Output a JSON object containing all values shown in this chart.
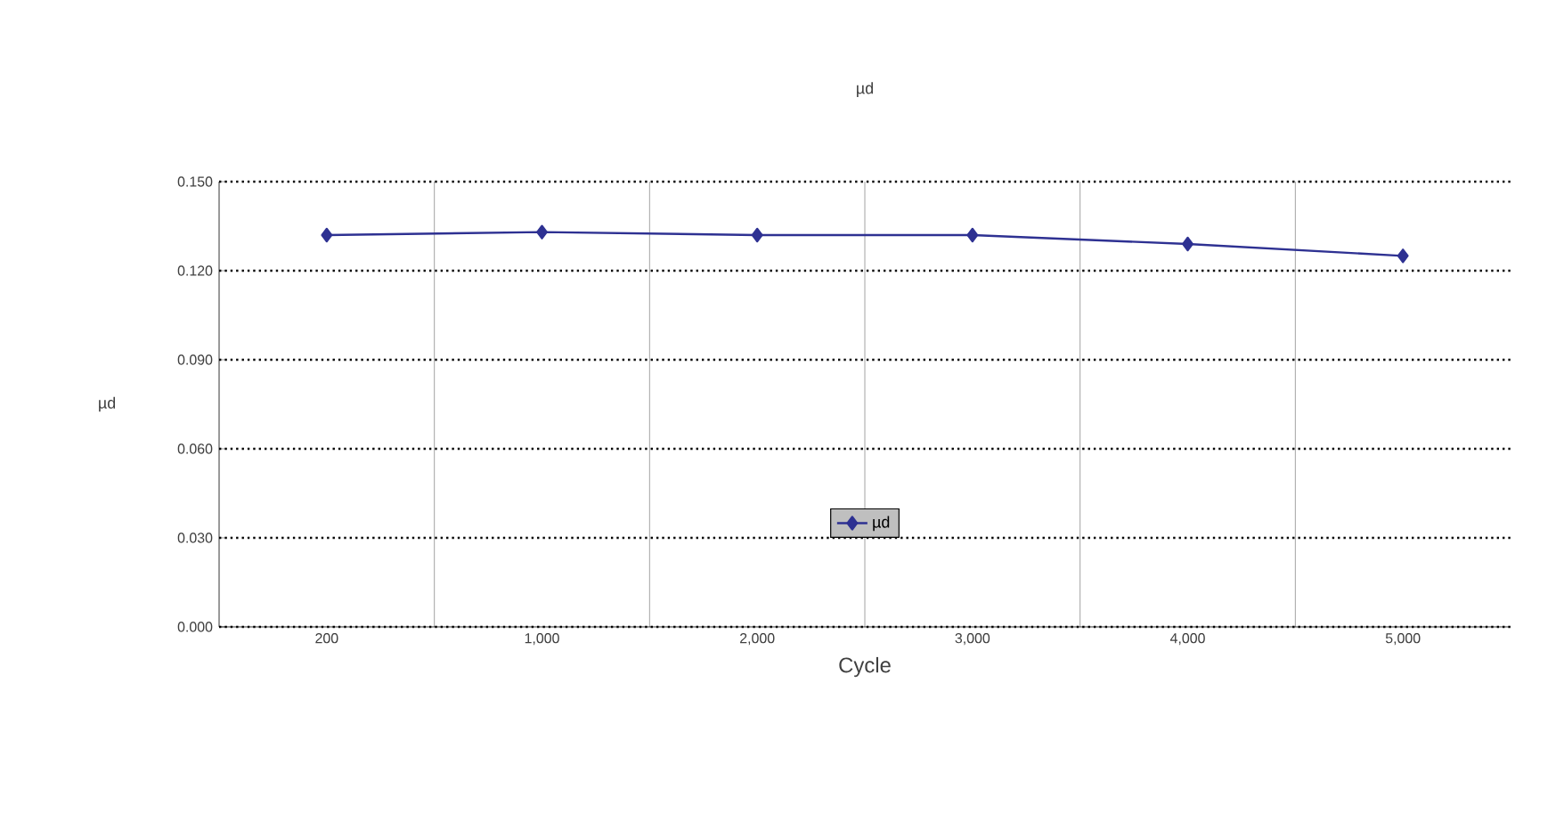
{
  "chart_data": {
    "type": "line",
    "title": "µd",
    "xlabel": "Cycle",
    "ylabel": "µd",
    "categories": [
      "200",
      "1,000",
      "2,000",
      "3,000",
      "4,000",
      "5,000"
    ],
    "series": [
      {
        "name": "µd",
        "color": "#2e3192",
        "values": [
          0.132,
          0.133,
          0.132,
          0.132,
          0.129,
          0.125
        ]
      }
    ],
    "ylim": [
      0,
      0.15
    ],
    "yticks": [
      {
        "value": 0,
        "label": "0.000"
      },
      {
        "value": 0.03,
        "label": "0.030"
      },
      {
        "value": 0.06,
        "label": "0.060"
      },
      {
        "value": 0.09,
        "label": "0.090"
      },
      {
        "value": 0.12,
        "label": "0.120"
      },
      {
        "value": 0.15,
        "label": "0.150"
      }
    ],
    "grid": true,
    "legend": "bottom",
    "marker": "diamond",
    "line_style": "solid"
  }
}
